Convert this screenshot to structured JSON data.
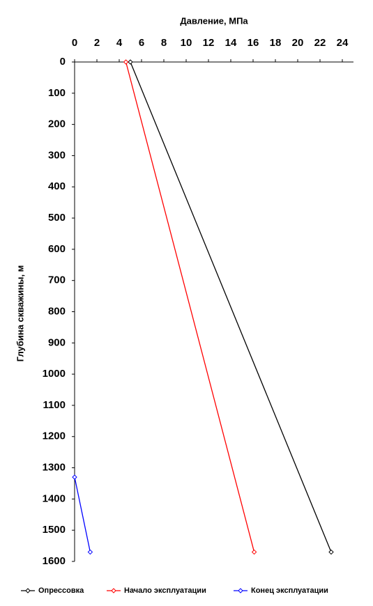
{
  "chart_data": {
    "type": "line",
    "x_label": "Давление, МПа",
    "y_label": "Глубина скважины, м",
    "xlim": [
      0,
      25
    ],
    "xticks": [
      0,
      2,
      4,
      6,
      8,
      10,
      12,
      14,
      16,
      18,
      20,
      22,
      24
    ],
    "ylim": [
      0,
      1600
    ],
    "yticks": [
      0,
      100,
      200,
      300,
      400,
      500,
      600,
      700,
      800,
      900,
      1000,
      1100,
      1200,
      1300,
      1400,
      1500,
      1600
    ],
    "y_reversed": true,
    "x_axis_position": "top",
    "grid": false,
    "legend": "bottom",
    "series": [
      {
        "name": "Опрессовка",
        "color": "#000000",
        "x": [
          5,
          23
        ],
        "values": [
          0,
          1570
        ]
      },
      {
        "name": "Начало эксплуатации",
        "color": "#ff0000",
        "x": [
          4.6,
          16.1
        ],
        "values": [
          0,
          1570
        ]
      },
      {
        "name": "Конец эксплуатации",
        "color": "#0000ff",
        "x": [
          0,
          1.4
        ],
        "values": [
          1330,
          1570
        ]
      }
    ]
  }
}
